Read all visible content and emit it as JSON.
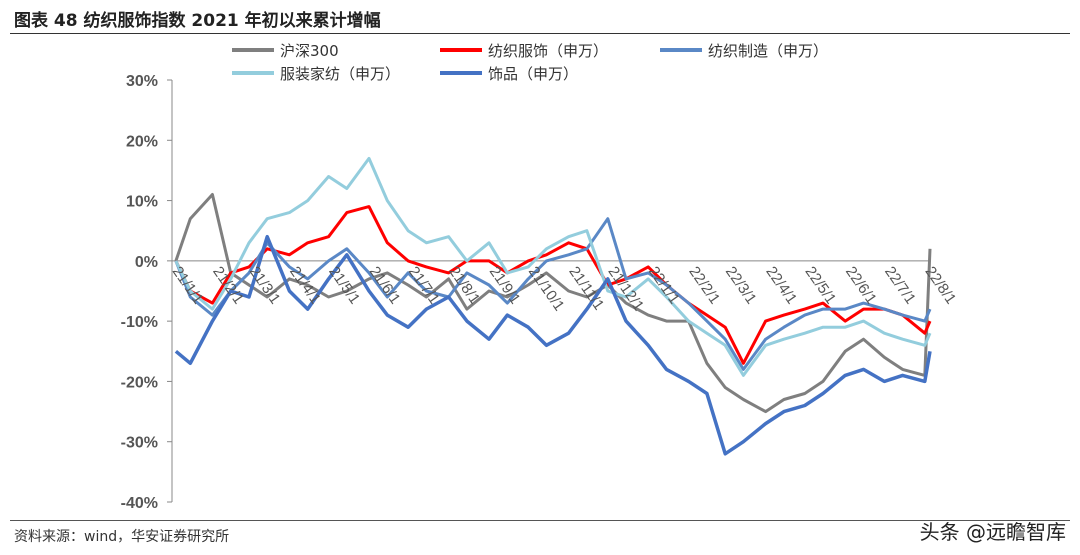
{
  "title": "图表 48  纺织服饰指数 2021 年初以来累计增幅",
  "footer": {
    "source": "资料来源：wind，华安证券研究所",
    "watermark": "头条 @远瞻智库"
  },
  "chart_data": {
    "type": "line",
    "title": "",
    "xlabel": "",
    "ylabel": "",
    "ylim": [
      -40,
      30
    ],
    "yticks": [
      "30%",
      "20%",
      "10%",
      "0%",
      "-10%",
      "-20%",
      "-30%",
      "-40%"
    ],
    "ytick_values": [
      30,
      20,
      10,
      0,
      -10,
      -20,
      -30,
      -40
    ],
    "xtick_labels": [
      "21/1/1",
      "21/2/1",
      "21/3/1",
      "21/4/1",
      "21/5/1",
      "21/6/1",
      "21/7/1",
      "21/8/1",
      "21/9/1",
      "21/10/1",
      "21/11/1",
      "21/12/1",
      "22/1/1",
      "22/2/1",
      "22/3/1",
      "22/4/1",
      "22/5/1",
      "22/6/1",
      "22/7/1",
      "22/8/1"
    ],
    "legend_position": "top",
    "grid": false,
    "x": [
      "2021-01-04",
      "2021-01-15",
      "2021-02-01",
      "2021-02-15",
      "2021-03-01",
      "2021-03-15",
      "2021-04-01",
      "2021-04-15",
      "2021-05-01",
      "2021-05-15",
      "2021-06-01",
      "2021-06-15",
      "2021-07-01",
      "2021-07-15",
      "2021-08-01",
      "2021-08-15",
      "2021-09-01",
      "2021-09-15",
      "2021-10-01",
      "2021-10-15",
      "2021-11-01",
      "2021-11-15",
      "2021-12-01",
      "2021-12-15",
      "2022-01-01",
      "2022-01-15",
      "2022-02-01",
      "2022-02-15",
      "2022-03-01",
      "2022-03-15",
      "2022-04-01",
      "2022-04-15",
      "2022-05-01",
      "2022-05-15",
      "2022-06-01",
      "2022-06-15",
      "2022-07-01",
      "2022-07-15",
      "2022-08-01",
      "2022-08-05"
    ],
    "series": [
      {
        "name": "沪深300",
        "color": "#7f7f7f",
        "values": [
          0,
          7,
          11,
          -2,
          -4,
          -6,
          -3,
          -4,
          -6,
          -5,
          -3,
          -2,
          -4,
          -6,
          -3,
          -8,
          -5,
          -6,
          -4,
          -2,
          -5,
          -6,
          -4,
          -7,
          -9,
          -10,
          -10,
          -17,
          -21,
          -23,
          -25,
          -23,
          -22,
          -20,
          -15,
          -13,
          -16,
          -18,
          -19,
          2
        ]
      },
      {
        "name": "纺织服饰（申万）",
        "color": "#ff0000",
        "values": [
          0,
          -5,
          -7,
          -2,
          -1,
          2,
          1,
          3,
          4,
          8,
          9,
          3,
          0,
          -1,
          -2,
          0,
          0,
          -2,
          0,
          1,
          3,
          2,
          -4,
          -3,
          -1,
          -4,
          -7,
          -9,
          -11,
          -17,
          -10,
          -9,
          -8,
          -7,
          -10,
          -8,
          -8,
          -9,
          -12,
          -10
        ]
      },
      {
        "name": "纺织制造（申万）",
        "color": "#5a88c6",
        "values": [
          0,
          -6,
          -9,
          -5,
          -2,
          3,
          -1,
          -3,
          0,
          2,
          -2,
          -6,
          -2,
          -5,
          -6,
          -2,
          -4,
          -7,
          -3,
          0,
          1,
          2,
          7,
          -3,
          -2,
          -4,
          -7,
          -10,
          -13,
          -18,
          -13,
          -11,
          -9,
          -8,
          -8,
          -7,
          -8,
          -9,
          -10,
          -8
        ]
      },
      {
        "name": "服装家纺（申万）",
        "color": "#93cddd",
        "values": [
          0,
          -5,
          -8,
          -3,
          3,
          7,
          8,
          10,
          14,
          12,
          17,
          10,
          5,
          3,
          4,
          0,
          3,
          -2,
          -1,
          2,
          4,
          5,
          -5,
          -6,
          -3,
          -6,
          -10,
          -12,
          -14,
          -19,
          -14,
          -13,
          -12,
          -11,
          -11,
          -10,
          -12,
          -13,
          -14,
          -12
        ]
      },
      {
        "name": "饰品（申万）",
        "color": "#4472c4",
        "values": [
          -15,
          -17,
          -10,
          -5,
          -6,
          4,
          -5,
          -8,
          -3,
          1,
          -5,
          -9,
          -11,
          -8,
          -6,
          -10,
          -13,
          -9,
          -11,
          -14,
          -12,
          -8,
          -3,
          -10,
          -14,
          -18,
          -20,
          -22,
          -32,
          -30,
          -27,
          -25,
          -24,
          -22,
          -19,
          -18,
          -20,
          -19,
          -20,
          -15
        ]
      }
    ]
  }
}
